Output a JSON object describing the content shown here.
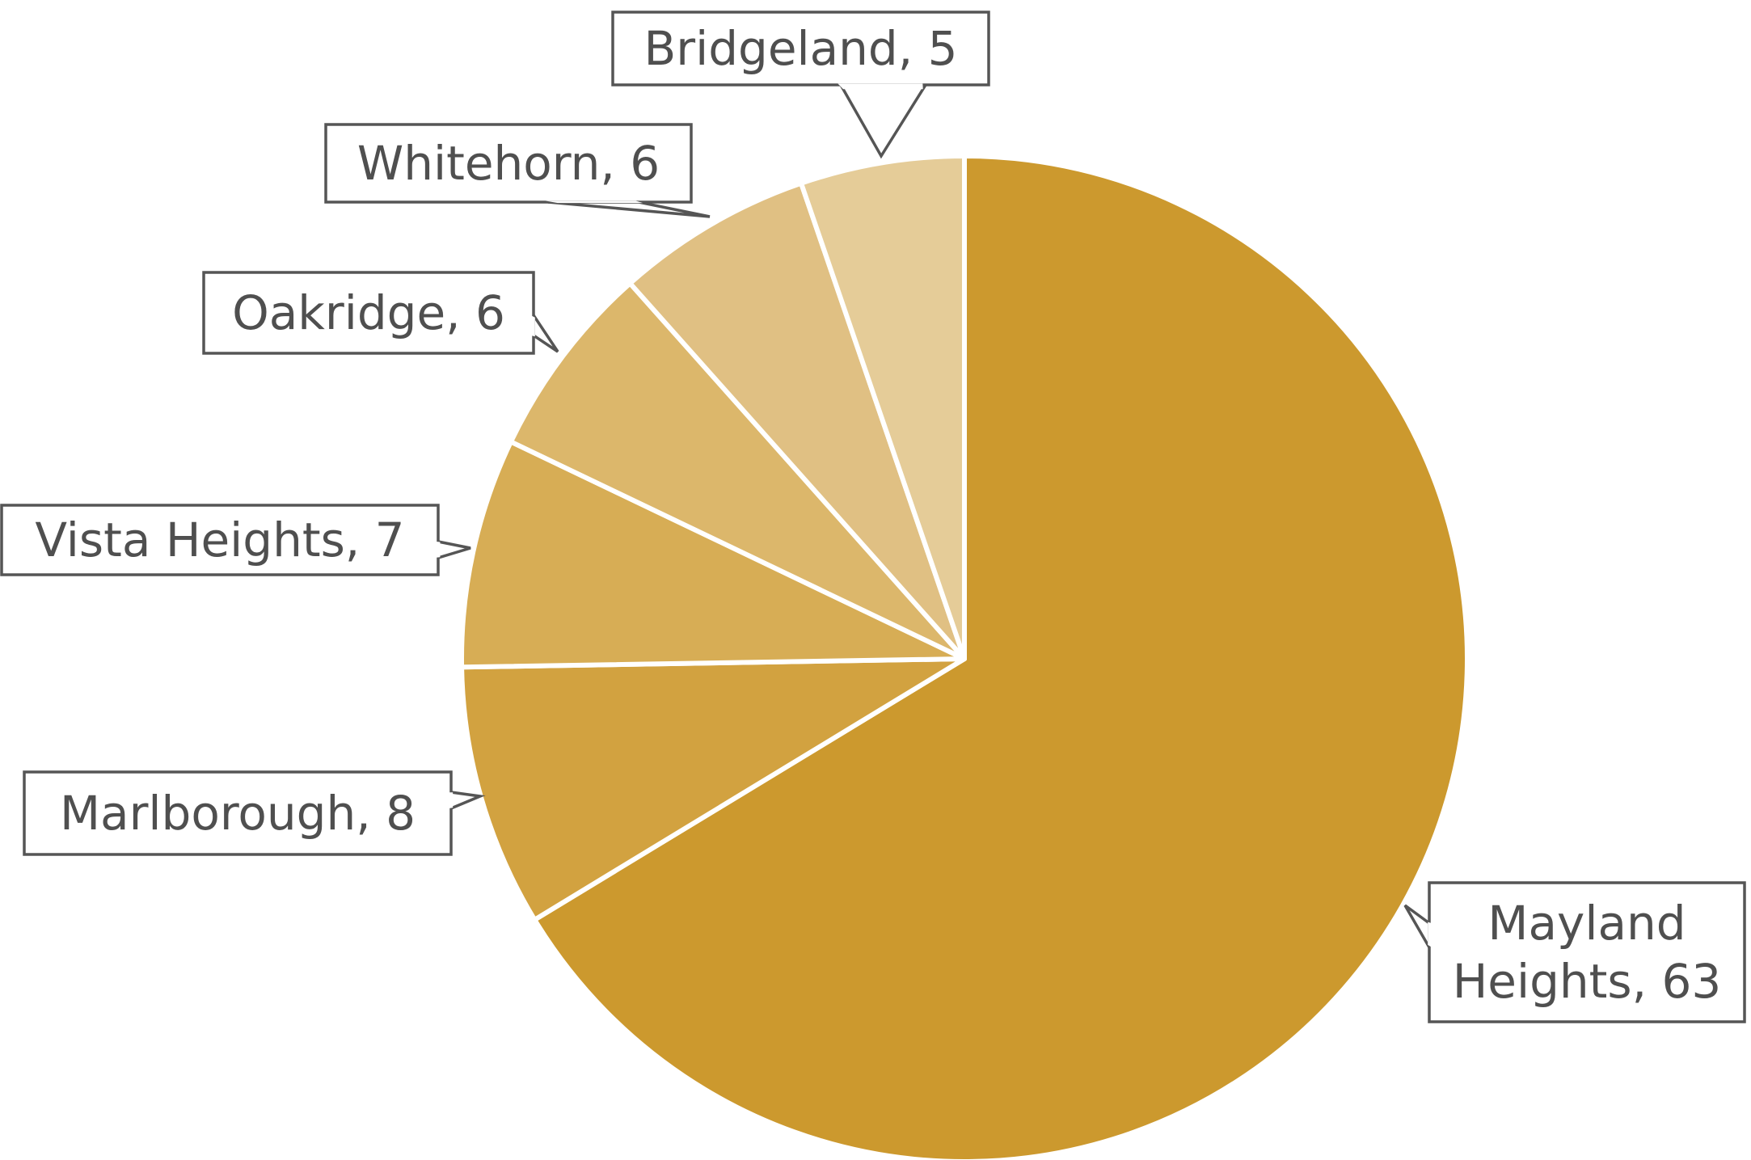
{
  "chart_data": {
    "type": "pie",
    "title": "",
    "start": "12 o'clock, clockwise",
    "slices": [
      {
        "label": "Mayland Heights",
        "value": 63,
        "color": "#CC992E",
        "label_lines": [
          "Mayland",
          "Heights, 63"
        ]
      },
      {
        "label": "Marlborough",
        "value": 8,
        "color": "#D2A240",
        "label_lines": [
          "Marlborough, 8"
        ]
      },
      {
        "label": "Vista Heights",
        "value": 7,
        "color": "#D7AD55",
        "label_lines": [
          "Vista Heights, 7"
        ]
      },
      {
        "label": "Oakridge",
        "value": 6,
        "color": "#DCB76B",
        "label_lines": [
          "Oakridge, 6"
        ]
      },
      {
        "label": "Whitehorn",
        "value": 6,
        "color": "#E0C083",
        "label_lines": [
          "Whitehorn, 6"
        ]
      },
      {
        "label": "Bridgeland",
        "value": 5,
        "color": "#E5CC98",
        "label_lines": [
          "Bridgeland, 5"
        ]
      }
    ]
  }
}
